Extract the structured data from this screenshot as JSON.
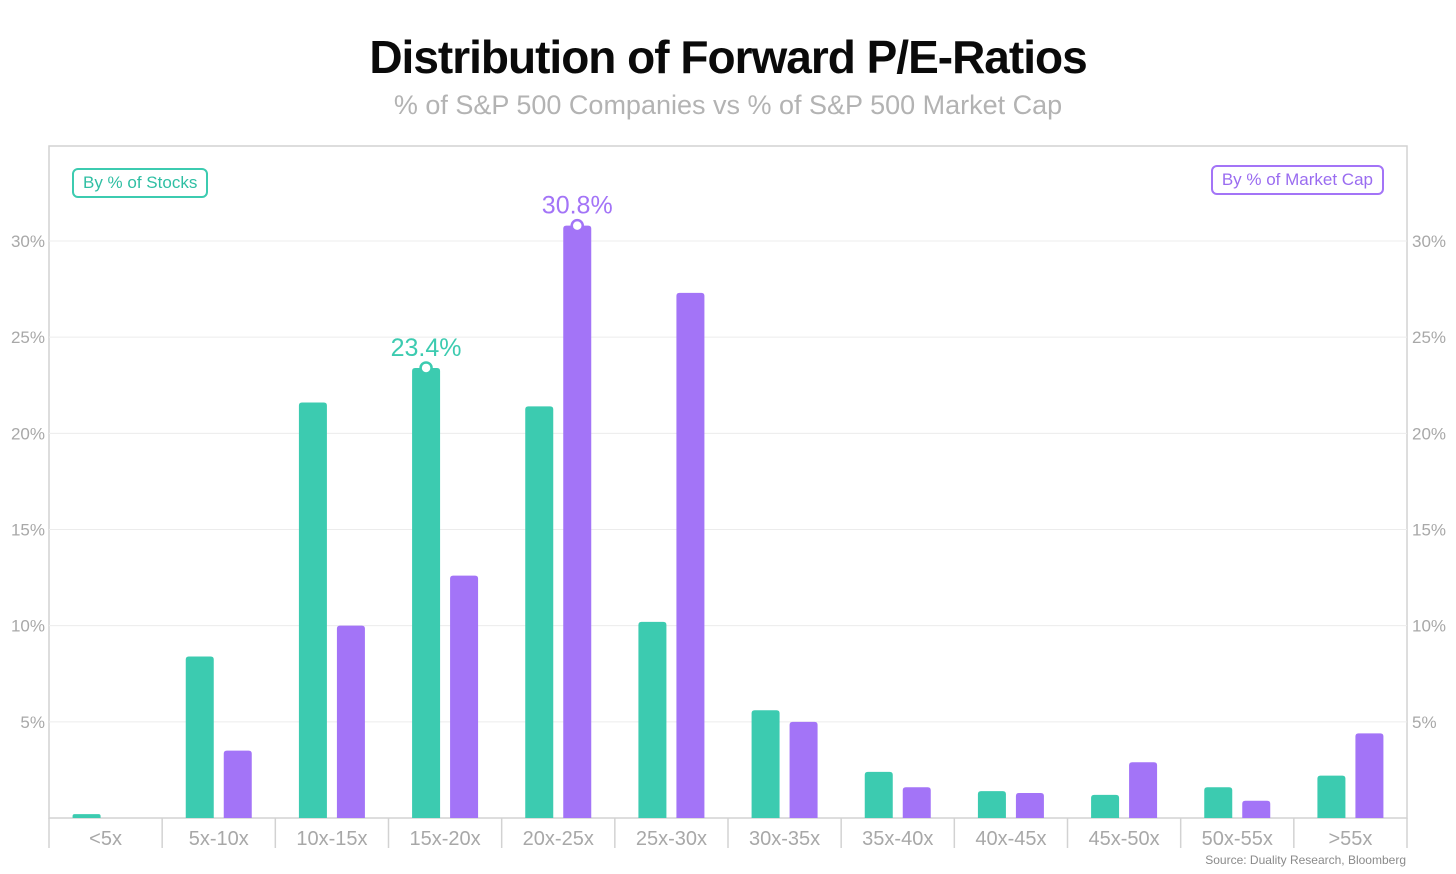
{
  "title": "Distribution of Forward P/E-Ratios",
  "subtitle": "% of S&P 500 Companies vs % of S&P 500 Market Cap",
  "source": "Source: Duality Research, Bloomberg",
  "legend": {
    "stocks": "By % of Stocks",
    "market_cap": "By % of Market Cap"
  },
  "colors": {
    "stocks": "#3ccbb0",
    "market_cap": "#a374f7",
    "grid": "#ececec",
    "axis": "#d2d2d2",
    "tick_text": "#a8a8a8"
  },
  "chart_data": {
    "type": "bar",
    "title": "Distribution of Forward P/E-Ratios",
    "subtitle": "% of S&P 500 Companies vs % of S&P 500 Market Cap",
    "categories": [
      "<5x",
      "5x-10x",
      "10x-15x",
      "15x-20x",
      "20x-25x",
      "25x-30x",
      "30x-35x",
      "35x-40x",
      "40x-45x",
      "45x-50x",
      "50x-55x",
      ">55x"
    ],
    "series": [
      {
        "name": "By % of Stocks",
        "values": [
          0.2,
          8.4,
          21.6,
          23.4,
          21.4,
          10.2,
          5.6,
          2.4,
          1.4,
          1.2,
          1.6,
          2.2
        ]
      },
      {
        "name": "By % of Market Cap",
        "values": [
          0.0,
          3.5,
          10.0,
          12.6,
          30.8,
          27.3,
          5.0,
          1.6,
          1.3,
          2.9,
          0.9,
          4.4
        ]
      }
    ],
    "annotations": [
      {
        "series": 0,
        "index": 3,
        "label": "23.4%"
      },
      {
        "series": 1,
        "index": 4,
        "label": "30.8%"
      }
    ],
    "y_ticks": [
      5,
      10,
      15,
      20,
      25,
      30
    ],
    "y_tick_labels": [
      "5%",
      "10%",
      "15%",
      "20%",
      "25%",
      "30%"
    ],
    "ylim": [
      0,
      35
    ],
    "xlabel": "",
    "ylabel": "",
    "grid": true
  }
}
